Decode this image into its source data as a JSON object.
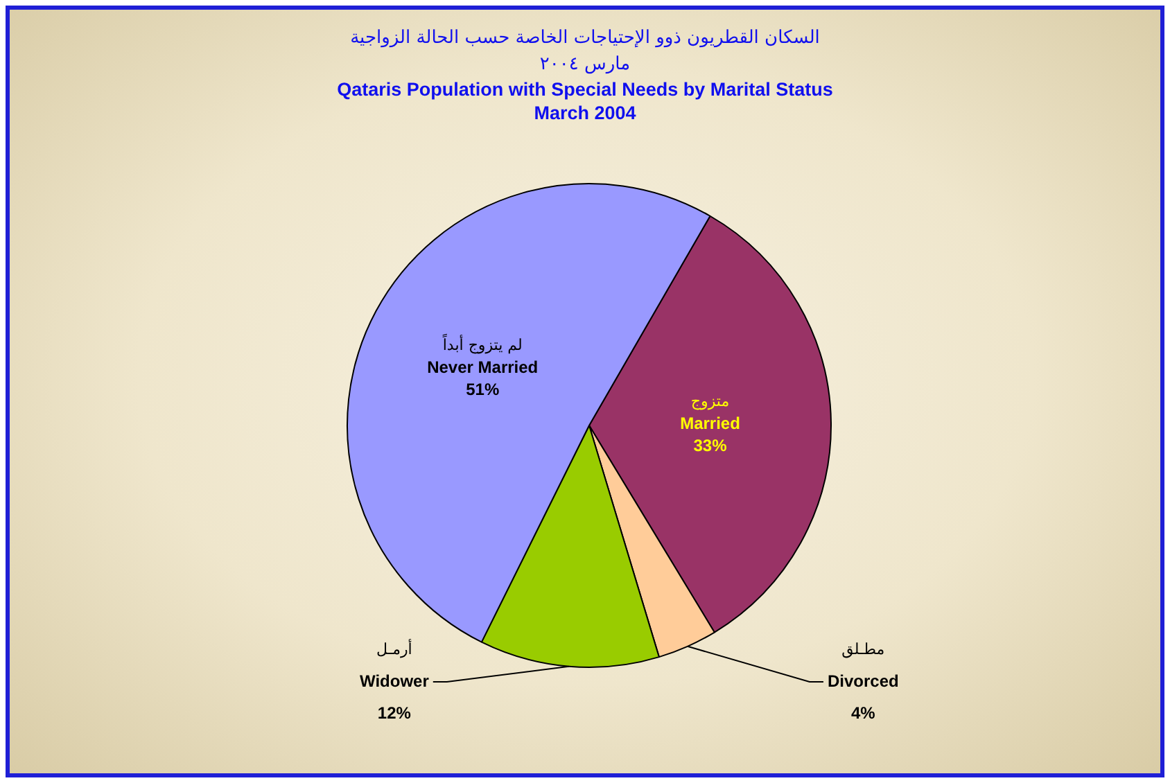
{
  "chart_data": {
    "type": "pie",
    "title": "السكان القطريون ذوو الإحتياجات الخاصة حسب الحالة الزواجية\nمارس ٢٠٠٤\nQataris Population with Special Needs by Marital Status\nMarch 2004",
    "categories": [
      "متزوج\nMarried",
      "مطـلق\nDivorced",
      "أرمـل\nWidower",
      "لم يتزوج أبداً\nNever Married"
    ],
    "values": [
      33,
      4,
      12,
      51
    ],
    "colors": [
      "#993366",
      "#ffcc99",
      "#99cc00",
      "#9999ff"
    ],
    "value_labels": [
      "33%",
      "4%",
      "12%",
      "51%"
    ],
    "legend": false
  }
}
